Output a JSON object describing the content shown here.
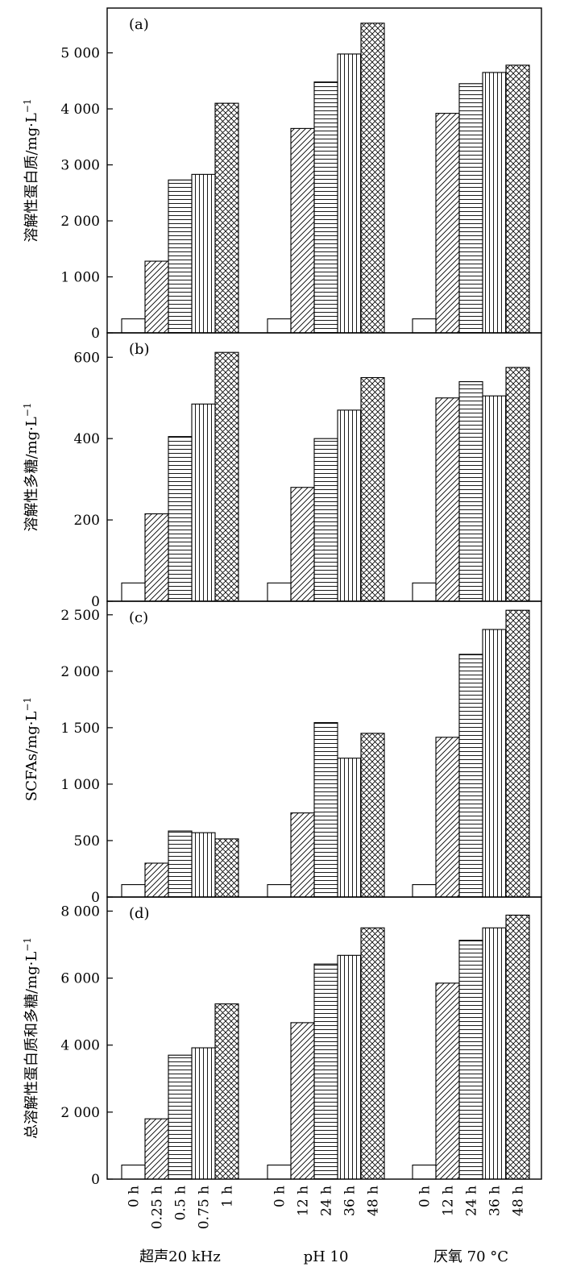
{
  "chart_data": [
    {
      "type": "bar",
      "panel_label": "(a)",
      "ylabel": "溶解性蛋白质/mg·L",
      "ylabel_sup": "−1",
      "ylim": [
        0,
        5800
      ],
      "yticks": [
        0,
        1000,
        2000,
        3000,
        4000,
        5000
      ],
      "ytick_labels": [
        "0",
        "1 000",
        "2 000",
        "3 000",
        "4 000",
        "5 000"
      ],
      "groups": [
        {
          "name": "超声20 kHz",
          "bars": [
            {
              "label": "0 h",
              "value": 250
            },
            {
              "label": "0.25 h",
              "value": 1280
            },
            {
              "label": "0.5 h",
              "value": 2730
            },
            {
              "label": "0.75 h",
              "value": 2830
            },
            {
              "label": "1 h",
              "value": 4100
            }
          ]
        },
        {
          "name": "pH 10",
          "bars": [
            {
              "label": "0 h",
              "value": 250
            },
            {
              "label": "12 h",
              "value": 3650
            },
            {
              "label": "24 h",
              "value": 4480
            },
            {
              "label": "36 h",
              "value": 4980
            },
            {
              "label": "48 h",
              "value": 5530
            }
          ]
        },
        {
          "name": "厌氧 70 °C",
          "bars": [
            {
              "label": "0 h",
              "value": 250
            },
            {
              "label": "12 h",
              "value": 3920
            },
            {
              "label": "24 h",
              "value": 4450
            },
            {
              "label": "36 h",
              "value": 4650
            },
            {
              "label": "48 h",
              "value": 4780
            }
          ]
        }
      ]
    },
    {
      "type": "bar",
      "panel_label": "(b)",
      "ylabel": "溶解性多糖/mg·L",
      "ylabel_sup": "−1",
      "ylim": [
        0,
        660
      ],
      "yticks": [
        0,
        200,
        400,
        600
      ],
      "ytick_labels": [
        "0",
        "200",
        "400",
        "600"
      ],
      "groups": [
        {
          "name": "超声20 kHz",
          "bars": [
            {
              "label": "0 h",
              "value": 45
            },
            {
              "label": "0.25 h",
              "value": 215
            },
            {
              "label": "0.5 h",
              "value": 405
            },
            {
              "label": "0.75 h",
              "value": 485
            },
            {
              "label": "1 h",
              "value": 612
            }
          ]
        },
        {
          "name": "pH 10",
          "bars": [
            {
              "label": "0 h",
              "value": 45
            },
            {
              "label": "12 h",
              "value": 280
            },
            {
              "label": "24 h",
              "value": 400
            },
            {
              "label": "36 h",
              "value": 470
            },
            {
              "label": "48 h",
              "value": 550
            }
          ]
        },
        {
          "name": "厌氧 70 °C",
          "bars": [
            {
              "label": "0 h",
              "value": 45
            },
            {
              "label": "12 h",
              "value": 500
            },
            {
              "label": "24 h",
              "value": 540
            },
            {
              "label": "36 h",
              "value": 505
            },
            {
              "label": "48 h",
              "value": 575
            }
          ]
        }
      ]
    },
    {
      "type": "bar",
      "panel_label": "(c)",
      "ylabel": "SCFAs/mg·L",
      "ylabel_sup": "−1",
      "ylim": [
        0,
        2620
      ],
      "yticks": [
        0,
        500,
        1000,
        1500,
        2000,
        2500
      ],
      "ytick_labels": [
        "0",
        "500",
        "1 000",
        "1 500",
        "2 000",
        "2 500"
      ],
      "groups": [
        {
          "name": "超声20 kHz",
          "bars": [
            {
              "label": "0 h",
              "value": 110
            },
            {
              "label": "0.25 h",
              "value": 300
            },
            {
              "label": "0.5 h",
              "value": 585
            },
            {
              "label": "0.75 h",
              "value": 570
            },
            {
              "label": "1 h",
              "value": 515
            }
          ]
        },
        {
          "name": "pH 10",
          "bars": [
            {
              "label": "0 h",
              "value": 110
            },
            {
              "label": "12 h",
              "value": 745
            },
            {
              "label": "24 h",
              "value": 1545
            },
            {
              "label": "36 h",
              "value": 1230
            },
            {
              "label": "48 h",
              "value": 1450
            }
          ]
        },
        {
          "name": "厌氧 70 °C",
          "bars": [
            {
              "label": "0 h",
              "value": 110
            },
            {
              "label": "12 h",
              "value": 1415
            },
            {
              "label": "24 h",
              "value": 2150
            },
            {
              "label": "36 h",
              "value": 2370
            },
            {
              "label": "48 h",
              "value": 2540
            }
          ]
        }
      ]
    },
    {
      "type": "bar",
      "panel_label": "(d)",
      "ylabel": "总溶解性蛋白质和多糖/mg·L",
      "ylabel_sup": "−1",
      "ylim": [
        0,
        8420
      ],
      "yticks": [
        0,
        2000,
        4000,
        6000,
        8000
      ],
      "ytick_labels": [
        "0",
        "2 000",
        "4 000",
        "6 000",
        "8 000"
      ],
      "groups": [
        {
          "name": "超声20 kHz",
          "bars": [
            {
              "label": "0 h",
              "value": 420
            },
            {
              "label": "0.25 h",
              "value": 1800
            },
            {
              "label": "0.5 h",
              "value": 3700
            },
            {
              "label": "0.75 h",
              "value": 3920
            },
            {
              "label": "1 h",
              "value": 5230
            }
          ]
        },
        {
          "name": "pH 10",
          "bars": [
            {
              "label": "0 h",
              "value": 420
            },
            {
              "label": "12 h",
              "value": 4670
            },
            {
              "label": "24 h",
              "value": 6420
            },
            {
              "label": "36 h",
              "value": 6680
            },
            {
              "label": "48 h",
              "value": 7500
            }
          ]
        },
        {
          "name": "厌氧 70 °C",
          "bars": [
            {
              "label": "0 h",
              "value": 420
            },
            {
              "label": "12 h",
              "value": 5850
            },
            {
              "label": "24 h",
              "value": 7130
            },
            {
              "label": "36 h",
              "value": 7500
            },
            {
              "label": "48 h",
              "value": 7880
            }
          ]
        }
      ]
    }
  ]
}
